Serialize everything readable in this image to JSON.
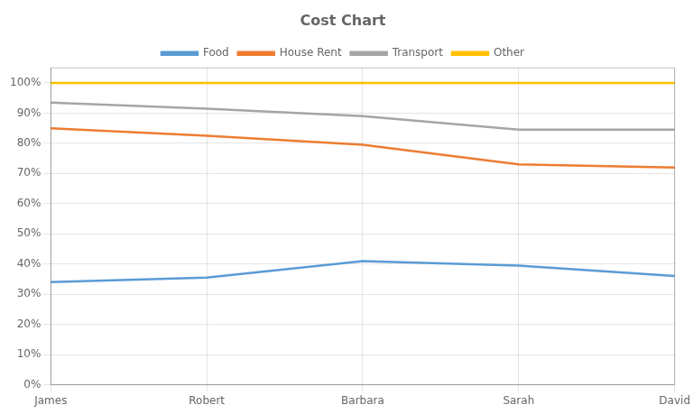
{
  "chart_data": {
    "type": "line",
    "title": "Cost Chart",
    "categories": [
      "James",
      "Robert",
      "Barbara",
      "Sarah",
      "David"
    ],
    "series": [
      {
        "name": "Food",
        "color": "#5B9BD5",
        "values": [
          0.34,
          0.355,
          0.41,
          0.395,
          0.36
        ]
      },
      {
        "name": "House Rent",
        "color": "#ED7D31",
        "values": [
          0.85,
          0.825,
          0.795,
          0.73,
          0.72
        ]
      },
      {
        "name": "Transport",
        "color": "#A5A5A5",
        "values": [
          0.935,
          0.915,
          0.89,
          0.845,
          0.845
        ]
      },
      {
        "name": "Other",
        "color": "#FFC000",
        "values": [
          1.0,
          1.0,
          1.0,
          1.0,
          1.0
        ]
      }
    ],
    "ylim": [
      0.0,
      1.05
    ],
    "yticks": [
      {
        "value": 0.0,
        "label": "0%"
      },
      {
        "value": 0.1,
        "label": "10%"
      },
      {
        "value": 0.2,
        "label": "20%"
      },
      {
        "value": 0.3,
        "label": "30%"
      },
      {
        "value": 0.4,
        "label": "40%"
      },
      {
        "value": 0.5,
        "label": "50%"
      },
      {
        "value": 0.6,
        "label": "60%"
      },
      {
        "value": 0.7,
        "label": "70%"
      },
      {
        "value": 0.8,
        "label": "80%"
      },
      {
        "value": 0.9,
        "label": "90%"
      },
      {
        "value": 1.0,
        "label": "100%"
      }
    ],
    "grid": true,
    "legend": "top"
  }
}
